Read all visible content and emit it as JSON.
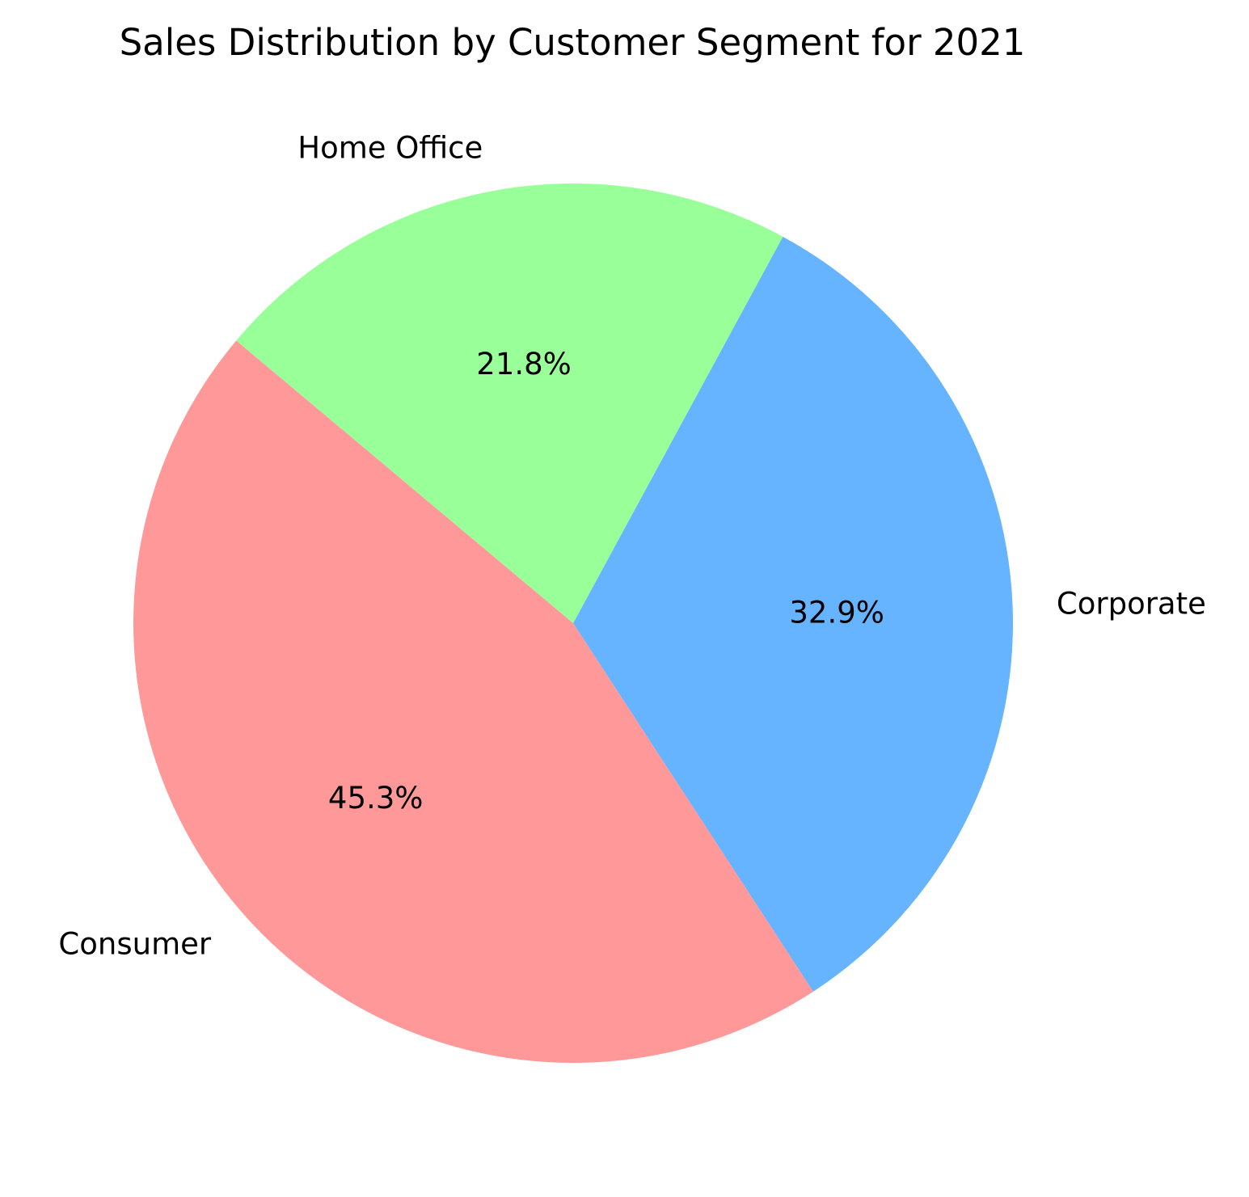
{
  "chart_data": {
    "type": "pie",
    "title": "Sales Distribution by Customer Segment for 2021",
    "slices": [
      {
        "label": "Consumer",
        "value": 45.3,
        "pct_label": "45.3%",
        "color": "#ff9999"
      },
      {
        "label": "Corporate",
        "value": 32.9,
        "pct_label": "32.9%",
        "color": "#66b3ff"
      },
      {
        "label": "Home Office",
        "value": 21.8,
        "pct_label": "21.8%",
        "color": "#99ff99"
      }
    ],
    "start_angle_deg": 140,
    "direction": "counterclockwise",
    "legend": "none"
  }
}
